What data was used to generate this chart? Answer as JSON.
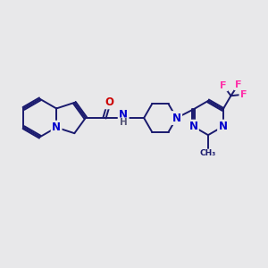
{
  "bg_color": "#e8e8ea",
  "bond_color": "#1a1a6e",
  "bond_width": 1.4,
  "dbo": 0.055,
  "atom_colors": {
    "N": "#0000cc",
    "O": "#cc0000",
    "F": "#ff33aa"
  },
  "fs": 8.5
}
